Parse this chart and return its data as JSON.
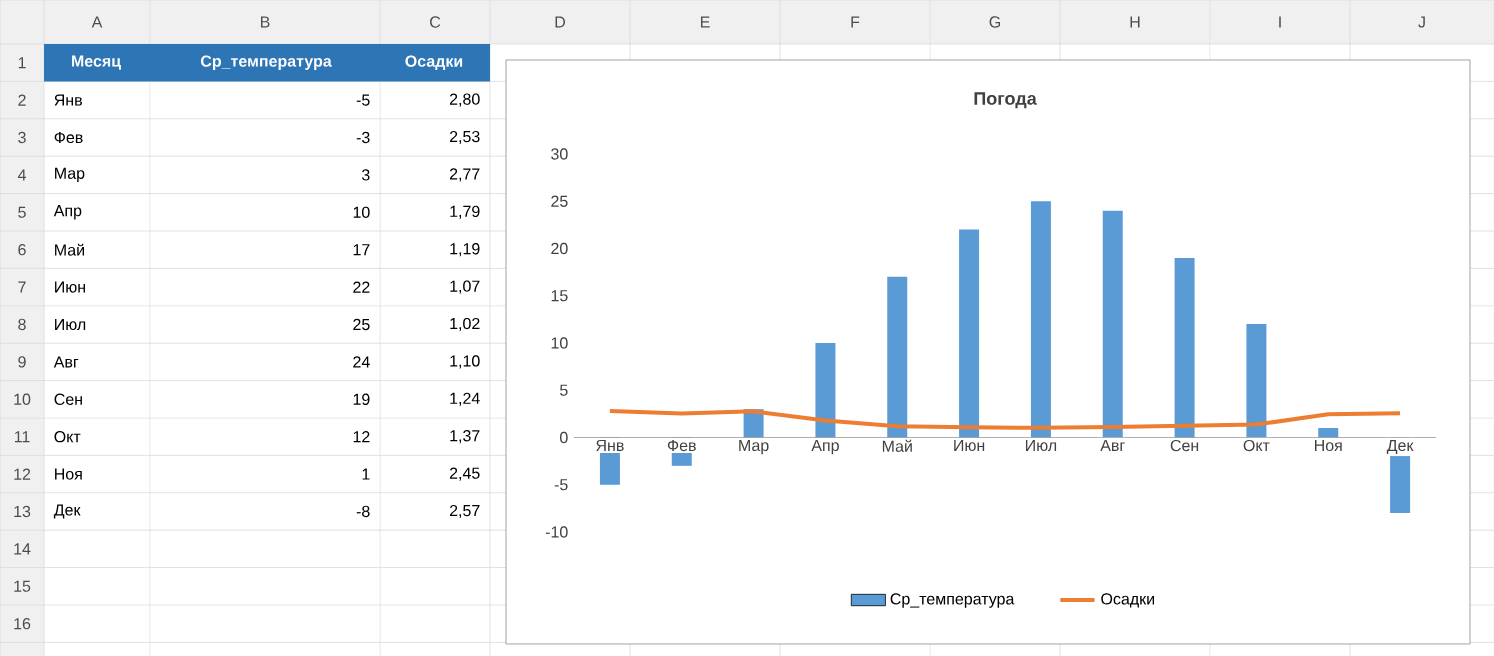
{
  "chart_data": {
    "type": "bar",
    "title": "Погода",
    "categories": [
      "Янв",
      "Фев",
      "Мар",
      "Апр",
      "Май",
      "Июн",
      "Июл",
      "Авг",
      "Сен",
      "Окт",
      "Ноя",
      "Дек"
    ],
    "series": [
      {
        "name": "Ср_температура",
        "color": "#5b9bd5",
        "values": [
          -5,
          -3,
          3,
          10,
          17,
          22,
          25,
          24,
          19,
          12,
          1,
          -8
        ]
      },
      {
        "name": "Осадки",
        "type": "line",
        "color": "#ed7d31",
        "values": [
          2.8,
          2.53,
          2.77,
          1.79,
          1.19,
          1.07,
          1.02,
          1.1,
          1.24,
          1.37,
          2.45,
          2.57
        ]
      }
    ],
    "ylim": [
      -10,
      30
    ],
    "yticks": [
      -10,
      -5,
      0,
      5,
      10,
      15,
      20,
      25,
      30
    ],
    "legend": "bottom",
    "annotations": [
      "Месяц",
      "A",
      "B",
      "C",
      "D",
      "E",
      "F",
      "G",
      "H",
      "I",
      "J",
      "1",
      "2",
      "3",
      "4",
      "5",
      "6",
      "7",
      "8",
      "9",
      "10",
      "11",
      "12",
      "13",
      "14",
      "15",
      "16",
      "-5",
      "-3",
      "3",
      "10",
      "17",
      "22",
      "25",
      "24",
      "19",
      "12",
      "1",
      "-8",
      "2,80",
      "2,53",
      "2,77",
      "1,79",
      "1,19",
      "1,07",
      "1,02",
      "1,10",
      "1,24",
      "1,37",
      "2,45",
      "2,57"
    ]
  }
}
